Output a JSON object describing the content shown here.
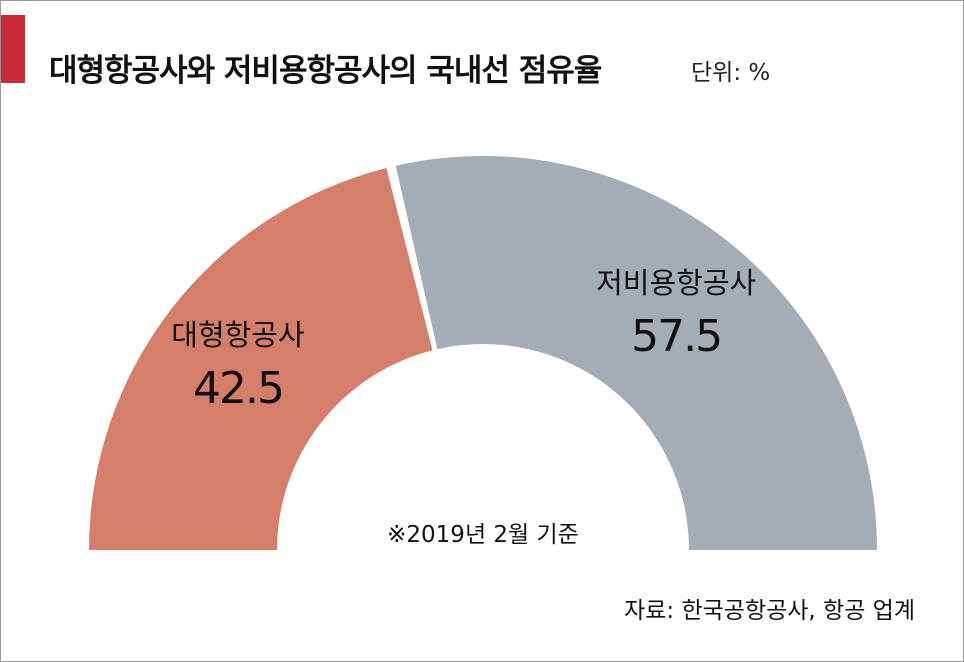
{
  "header": {
    "title": "대형항공사와 저비용항공사의 국내선 점유율",
    "unit": "단위: %"
  },
  "chart_data": {
    "type": "pie",
    "subtype": "half-donut",
    "title": "대형항공사와 저비용항공사의 국내선 점유율",
    "unit": "%",
    "categories": [
      "대형항공사",
      "저비용항공사"
    ],
    "values": [
      42.5,
      57.5
    ],
    "value_labels": [
      "42.5",
      "57.5"
    ],
    "colors": [
      "#d57e6a",
      "#a5adb4"
    ],
    "note": "※2019년 2월 기준"
  },
  "footer": {
    "source": "자료: 한국공항공사, 항공 업계"
  },
  "style": {
    "accent": "#cc2a36",
    "label_color": "#111111"
  }
}
